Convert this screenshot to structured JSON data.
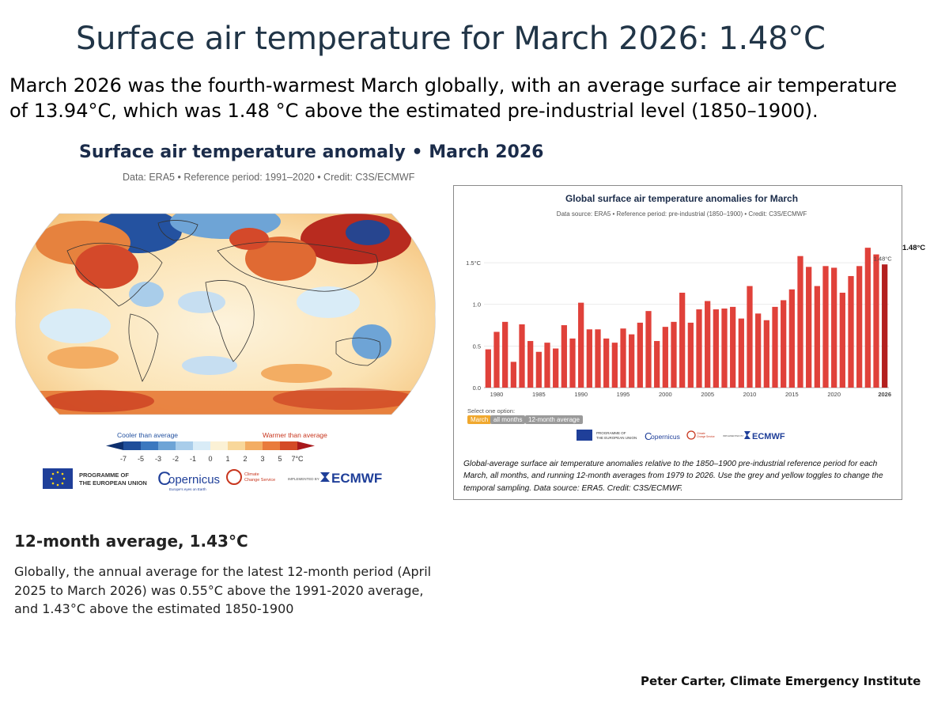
{
  "slide": {
    "title": "Surface air temperature for March 2026: 1.48°C",
    "intro": "March 2026 was the fourth-warmest March globally, with an average surface air temperature of 13.94°C, which was 1.48 °C above the estimated pre-industrial level (1850–1900).",
    "avg_heading": "12-month average, 1.43°C",
    "avg_body": "Globally, the annual average for the latest 12-month period (April 2025 to March 2026) was 0.55°C above the 1991-2020 average, and 1.43°C above the estimated 1850-1900",
    "author": "Peter Carter, Climate Emergency Institute"
  },
  "map_panel": {
    "title": "Surface air temperature anomaly • March 2026",
    "subtitle": "Data: ERA5 • Reference period: 1991–2020 • Credit: C3S/ECMWF",
    "scale": {
      "cooler_label": "Cooler than average",
      "warmer_label": "Warmer than average",
      "ticks": [
        "-7",
        "-5",
        "-3",
        "-2",
        "-1",
        "0",
        "1",
        "2",
        "3",
        "5",
        "7°C"
      ],
      "colors": [
        "#0d2f6e",
        "#1f4e9a",
        "#3b78bf",
        "#6ea4d6",
        "#a9cdea",
        "#d9ecf7",
        "#fbf1d5",
        "#f8d79a",
        "#f3ad63",
        "#e97b3c",
        "#d44a26",
        "#a8181b"
      ]
    },
    "logos": {
      "eu_line1": "PROGRAMME OF",
      "eu_line2": "THE EUROPEAN UNION",
      "copernicus": "opernicus",
      "copernicus_c": "C",
      "copernicus_tag": "Europe's eyes on Earth",
      "c3s_line1": "Climate",
      "c3s_line2": "Change Service",
      "implemented_by": "IMPLEMENTED BY",
      "ecmwf": "ECMWF"
    }
  },
  "chart_panel": {
    "select_label": "Select one option:",
    "toggles": [
      "March",
      "all months",
      "12-month average"
    ],
    "caption": "Global-average surface air temperature anomalies relative to the 1850–1900 pre-industrial reference period for each March, all months, and running 12-month averages from 1979 to 2026. Use the grey and yellow toggles to change the temporal sampling. Data source: ERA5. Credit: C3S/ECMWF.",
    "side_value": "1.48°C",
    "logos": {
      "eu_line1": "PROGRAMME OF",
      "eu_line2": "THE EUROPEAN UNION",
      "copernicus": "opernicus",
      "copernicus_c": "C",
      "c3s_line1": "Climate",
      "c3s_line2": "Change Service",
      "implemented_by": "IMPLEMENTED BY",
      "ecmwf": "ECMWF"
    }
  },
  "chart_data": {
    "type": "bar",
    "title": "Global surface air temperature anomalies for March",
    "subtitle": "Data source: ERA5 • Reference period: pre-industrial (1850–1900) • Credit: C3S/ECMWF",
    "xlabel": "",
    "ylabel": "",
    "x": [
      1979,
      1980,
      1981,
      1982,
      1983,
      1984,
      1985,
      1986,
      1987,
      1988,
      1989,
      1990,
      1991,
      1992,
      1993,
      1994,
      1995,
      1996,
      1997,
      1998,
      1999,
      2000,
      2001,
      2002,
      2003,
      2004,
      2005,
      2006,
      2007,
      2008,
      2009,
      2010,
      2011,
      2012,
      2013,
      2014,
      2015,
      2016,
      2017,
      2018,
      2019,
      2020,
      2021,
      2022,
      2023,
      2024,
      2025,
      2026
    ],
    "values": [
      0.46,
      0.67,
      0.79,
      0.31,
      0.76,
      0.56,
      0.43,
      0.54,
      0.47,
      0.75,
      0.59,
      1.02,
      0.7,
      0.7,
      0.59,
      0.54,
      0.71,
      0.64,
      0.78,
      0.92,
      0.56,
      0.73,
      0.79,
      1.14,
      0.78,
      0.94,
      1.04,
      0.94,
      0.95,
      0.97,
      0.83,
      1.22,
      0.89,
      0.81,
      0.97,
      1.05,
      1.18,
      1.58,
      1.45,
      1.22,
      1.46,
      1.44,
      1.14,
      1.34,
      1.46,
      1.68,
      1.6,
      1.48
    ],
    "x_tick_labels": [
      "1980",
      "1985",
      "1990",
      "1995",
      "2000",
      "2005",
      "2010",
      "2015",
      "2020",
      "2026"
    ],
    "x_tick_years": [
      1980,
      1985,
      1990,
      1995,
      2000,
      2005,
      2010,
      2015,
      2020,
      2026
    ],
    "y_tick_labels": [
      "0.0",
      "0.5",
      "1.0",
      "1.5°C"
    ],
    "y_tick_values": [
      0,
      0.5,
      1.0,
      1.5
    ],
    "ylim": [
      0,
      1.9
    ],
    "highlight_year": 2026,
    "highlight_label": "1.48°C",
    "bar_color": "#e0413a",
    "highlight_color": "#b3201f",
    "grid": true
  }
}
